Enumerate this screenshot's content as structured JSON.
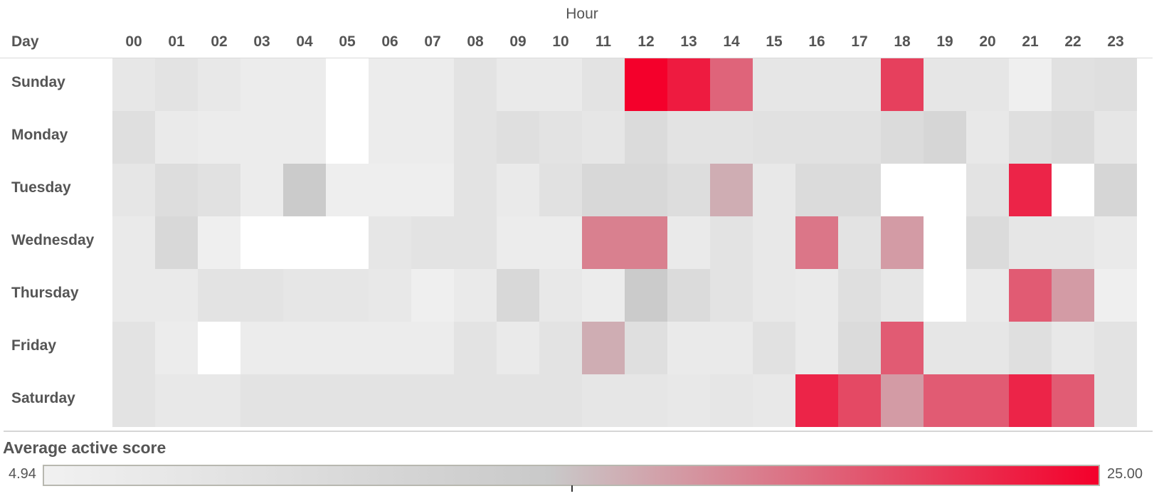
{
  "chart_data": {
    "type": "heatmap",
    "title": "Hour",
    "row_header": "Day",
    "hours": [
      "00",
      "01",
      "02",
      "03",
      "04",
      "05",
      "06",
      "07",
      "08",
      "09",
      "10",
      "11",
      "12",
      "13",
      "14",
      "15",
      "16",
      "17",
      "18",
      "19",
      "20",
      "21",
      "22",
      "23"
    ],
    "days": [
      "Sunday",
      "Monday",
      "Tuesday",
      "Wednesday",
      "Thursday",
      "Friday",
      "Saturday"
    ],
    "values": [
      [
        7.3,
        8.0,
        7.0,
        6.0,
        6.0,
        5.0,
        6.0,
        6.0,
        8.0,
        6.5,
        6.5,
        8.0,
        25.0,
        23.5,
        19.5,
        7.5,
        7.5,
        7.5,
        21.5,
        7.5,
        7.5,
        5.5,
        8.5,
        9.0
      ],
      [
        9.0,
        6.5,
        6.0,
        6.0,
        6.0,
        5.0,
        6.0,
        6.0,
        8.0,
        9.0,
        8.0,
        7.5,
        10.0,
        8.0,
        8.0,
        8.5,
        8.5,
        8.5,
        10.0,
        11.0,
        7.0,
        9.0,
        10.0,
        7.5
      ],
      [
        7.5,
        9.5,
        8.5,
        6.0,
        13.5,
        5.7,
        5.7,
        5.7,
        8.0,
        6.5,
        8.5,
        10.5,
        10.5,
        9.5,
        15.5,
        7.0,
        10.0,
        10.0,
        5.0,
        5.0,
        8.0,
        23.0,
        5.0,
        11.0
      ],
      [
        6.5,
        10.5,
        5.5,
        5.0,
        5.0,
        5.0,
        7.5,
        8.0,
        8.0,
        6.0,
        6.0,
        18.0,
        18.0,
        6.5,
        8.0,
        7.0,
        18.5,
        8.0,
        16.5,
        5.0,
        10.0,
        7.5,
        7.5,
        6.5
      ],
      [
        6.5,
        6.5,
        8.0,
        8.0,
        7.5,
        7.5,
        7.0,
        5.5,
        6.5,
        10.5,
        7.0,
        6.0,
        13.5,
        10.0,
        8.0,
        7.0,
        6.5,
        9.0,
        7.5,
        5.0,
        6.5,
        20.0,
        16.5,
        5.5
      ],
      [
        8.0,
        6.0,
        5.0,
        6.0,
        6.0,
        6.0,
        6.0,
        6.0,
        8.0,
        6.5,
        8.0,
        15.5,
        9.0,
        6.5,
        6.5,
        8.5,
        6.5,
        10.0,
        20.0,
        7.5,
        7.5,
        9.0,
        7.0,
        8.0
      ],
      [
        8.0,
        7.0,
        7.0,
        8.0,
        8.0,
        8.0,
        8.0,
        8.0,
        8.0,
        8.0,
        8.0,
        7.5,
        7.5,
        7.0,
        7.5,
        7.0,
        23.0,
        21.0,
        16.5,
        20.0,
        20.0,
        23.0,
        20.0,
        8.0
      ]
    ],
    "colors": {
      "low": "#f1f1f1",
      "mid": "#c9c9c9",
      "high": "#f4002b"
    },
    "legend": {
      "title": "Average active score",
      "min": 4.94,
      "max": 25.0,
      "min_label": "4.94",
      "max_label": "25.00",
      "placement": "bottom"
    }
  }
}
